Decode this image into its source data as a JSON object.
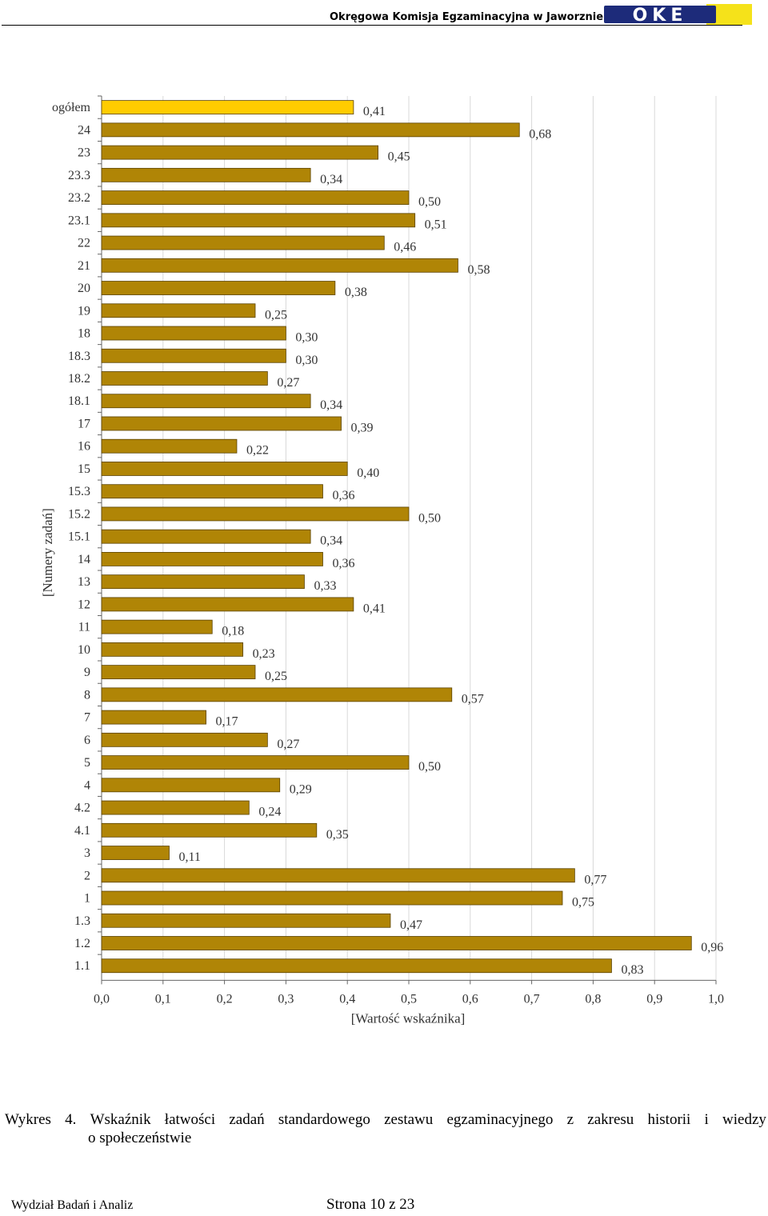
{
  "header": {
    "institution": "Okręgowa Komisja Egzaminacyjna w Jaworznie",
    "logo_text": "OKE"
  },
  "chart_data": {
    "type": "bar",
    "orientation": "horizontal",
    "categories": [
      "ogółem",
      "24",
      "23",
      "23.3",
      "23.2",
      "23.1",
      "22",
      "21",
      "20",
      "19",
      "18",
      "18.3",
      "18.2",
      "18.1",
      "17",
      "16",
      "15",
      "15.3",
      "15.2",
      "15.1",
      "14",
      "13",
      "12",
      "11",
      "10",
      "9",
      "8",
      "7",
      "6",
      "5",
      "4",
      "4.2",
      "4.1",
      "3",
      "2",
      "1",
      "1.3",
      "1.2",
      "1.1"
    ],
    "values": [
      0.41,
      0.68,
      0.45,
      0.34,
      0.5,
      0.51,
      0.46,
      0.58,
      0.38,
      0.25,
      0.3,
      0.3,
      0.27,
      0.34,
      0.39,
      0.22,
      0.4,
      0.36,
      0.5,
      0.34,
      0.36,
      0.33,
      0.41,
      0.18,
      0.23,
      0.25,
      0.57,
      0.17,
      0.27,
      0.5,
      0.29,
      0.24,
      0.35,
      0.11,
      0.77,
      0.75,
      0.47,
      0.96,
      0.83
    ],
    "value_labels": [
      "0,41",
      "0,68",
      "0,45",
      "0,34",
      "0,50",
      "0,51",
      "0,46",
      "0,58",
      "0,38",
      "0,25",
      "0,30",
      "0,30",
      "0,27",
      "0,34",
      "0,39",
      "0,22",
      "0,40",
      "0,36",
      "0,50",
      "0,34",
      "0,36",
      "0,33",
      "0,41",
      "0,18",
      "0,23",
      "0,25",
      "0,57",
      "0,17",
      "0,27",
      "0,50",
      "0,29",
      "0,24",
      "0,35",
      "0,11",
      "0,77",
      "0,75",
      "0,47",
      "0,96",
      "0,83"
    ],
    "xticks": [
      "0,0",
      "0,1",
      "0,2",
      "0,3",
      "0,4",
      "0,5",
      "0,6",
      "0,7",
      "0,8",
      "0,9",
      "1,0"
    ],
    "xlim": [
      0,
      1.0
    ],
    "xlabel": "[Wartość wskaźnika]",
    "ylabel": "[Numery zadań]",
    "grid": true,
    "colors": {
      "bar": "#B08506",
      "highlight": "#FFCC00",
      "bar_edge": "#5a4200",
      "grid": "#d9d9d9"
    },
    "highlight_category": "ogółem"
  },
  "caption": {
    "line1": [
      "Wykres",
      "4.",
      "Wskaźnik",
      "łatwości",
      "zadań",
      "standardowego",
      "zestawu",
      "egzaminacyjnego",
      "z",
      "zakresu",
      "historii",
      "i",
      "wiedzy"
    ],
    "line2": "o społeczeństwie"
  },
  "footer": {
    "left": "Wydział Badań i Analiz",
    "center": "Strona 10 z 23"
  }
}
